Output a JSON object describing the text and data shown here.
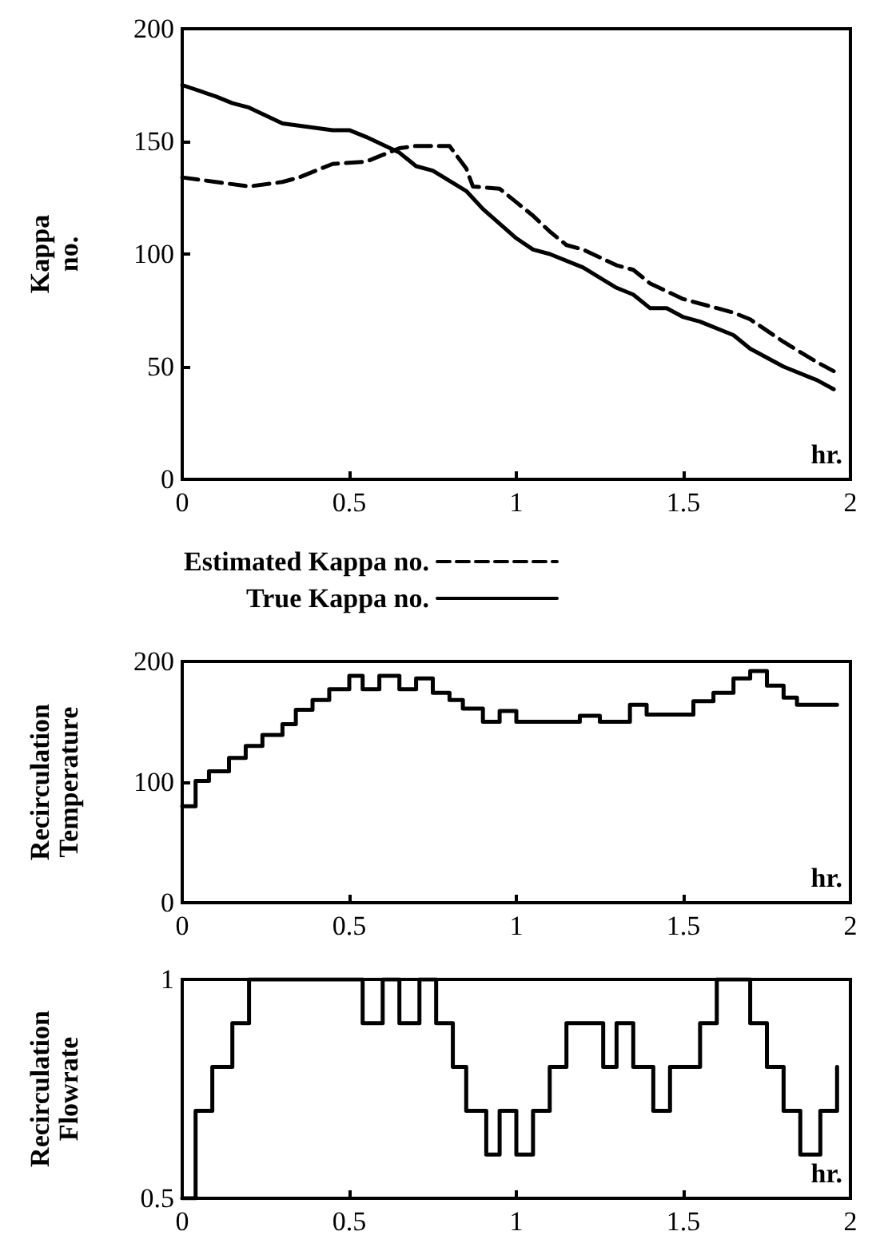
{
  "chart_data": [
    {
      "type": "line",
      "ylabel": "Kappa no.",
      "annotations": [
        "hr."
      ],
      "xlim": [
        0,
        2
      ],
      "xticks": [
        0,
        0.5,
        1,
        1.5,
        2
      ],
      "ylim": [
        0,
        200
      ],
      "yticks": [
        0,
        50,
        100,
        150,
        200
      ],
      "grid": false,
      "legend": "bottom",
      "marker": "none",
      "series": [
        {
          "name": "Estimated Kappa no.",
          "color": "#000000",
          "line_style": "dashed",
          "x": [
            0,
            0.1,
            0.2,
            0.3,
            0.35,
            0.45,
            0.55,
            0.6,
            0.65,
            0.7,
            0.8,
            0.85,
            0.87,
            0.95,
            1.0,
            1.05,
            1.1,
            1.15,
            1.2,
            1.3,
            1.35,
            1.4,
            1.5,
            1.6,
            1.65,
            1.7,
            1.8,
            1.9,
            1.95
          ],
          "values": [
            134,
            132,
            130,
            132,
            134,
            140,
            141,
            144,
            147,
            148,
            148,
            138,
            130,
            129,
            123,
            117,
            110,
            104,
            102,
            95,
            93,
            87,
            80,
            76,
            74,
            71,
            61,
            52,
            48
          ]
        },
        {
          "name": "True Kappa no.",
          "color": "#000000",
          "line_style": "solid",
          "x": [
            0,
            0.1,
            0.15,
            0.2,
            0.3,
            0.45,
            0.5,
            0.55,
            0.65,
            0.7,
            0.75,
            0.85,
            0.9,
            1.0,
            1.05,
            1.1,
            1.2,
            1.3,
            1.35,
            1.4,
            1.45,
            1.5,
            1.55,
            1.65,
            1.7,
            1.8,
            1.9,
            1.95
          ],
          "values": [
            175,
            170,
            167,
            165,
            158,
            155,
            155,
            152,
            145,
            139,
            137,
            128,
            120,
            107,
            102,
            100,
            94,
            85,
            82,
            76,
            76,
            72,
            70,
            64,
            58,
            50,
            44,
            40
          ]
        }
      ]
    },
    {
      "type": "step",
      "ylabel": "Recirculation Temperature",
      "annotations": [
        "hr."
      ],
      "xlim": [
        0,
        2
      ],
      "xticks": [
        0,
        0.5,
        1,
        1.5,
        2
      ],
      "ylim": [
        0,
        200
      ],
      "yticks": [
        0,
        100,
        200
      ],
      "grid": false,
      "marker": "none",
      "series": [
        {
          "color": "#000000",
          "x": [
            0,
            0.04,
            0.08,
            0.14,
            0.19,
            0.24,
            0.3,
            0.34,
            0.39,
            0.44,
            0.5,
            0.54,
            0.59,
            0.65,
            0.7,
            0.75,
            0.8,
            0.84,
            0.9,
            0.95,
            1.0,
            1.19,
            1.25,
            1.34,
            1.39,
            1.53,
            1.59,
            1.65,
            1.7,
            1.75,
            1.8,
            1.84,
            1.96
          ],
          "values": [
            80,
            101,
            109,
            120,
            130,
            139,
            148,
            160,
            168,
            177,
            188,
            177,
            188,
            177,
            186,
            174,
            168,
            161,
            150,
            159,
            150,
            155,
            150,
            164,
            156,
            167,
            174,
            186,
            192,
            180,
            170,
            164,
            164
          ]
        }
      ]
    },
    {
      "type": "step",
      "ylabel": "Recirculation Flowrate",
      "annotations": [
        "hr."
      ],
      "xlim": [
        0,
        2
      ],
      "xticks": [
        0,
        0.5,
        1,
        1.5,
        2
      ],
      "ylim": [
        0.5,
        1
      ],
      "yticks": [
        0.5,
        1
      ],
      "grid": false,
      "marker": "none",
      "series": [
        {
          "color": "#000000",
          "x": [
            0,
            0.04,
            0.09,
            0.15,
            0.2,
            0.54,
            0.6,
            0.65,
            0.71,
            0.76,
            0.81,
            0.85,
            0.91,
            0.95,
            1.0,
            1.05,
            1.1,
            1.15,
            1.26,
            1.3,
            1.35,
            1.41,
            1.46,
            1.55,
            1.6,
            1.7,
            1.75,
            1.8,
            1.85,
            1.91,
            1.96
          ],
          "values": [
            0.5,
            0.7,
            0.8,
            0.9,
            1,
            0.9,
            1,
            0.9,
            1,
            0.9,
            0.8,
            0.7,
            0.6,
            0.7,
            0.6,
            0.7,
            0.8,
            0.9,
            0.8,
            0.9,
            0.8,
            0.7,
            0.8,
            0.9,
            1,
            0.9,
            0.8,
            0.7,
            0.6,
            0.7,
            0.8
          ]
        }
      ]
    }
  ]
}
